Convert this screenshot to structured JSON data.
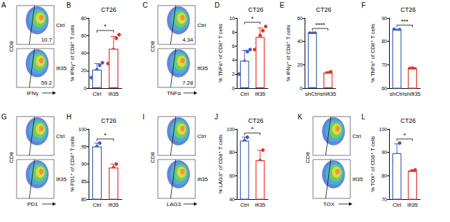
{
  "chart_data": [
    {
      "panel": "B",
      "type": "bar",
      "title": "CT26",
      "categories": [
        "Ctrl",
        "Ifi35"
      ],
      "values": [
        21,
        45
      ],
      "errors": [
        7,
        14
      ],
      "points": [
        [
          12,
          17,
          21,
          26,
          29
        ],
        [
          28,
          35,
          44,
          57,
          61
        ]
      ],
      "colors": [
        "#3f5fbf",
        "#e0342c"
      ],
      "ylabel": "% IFNγ⁺ of CD8⁺ T cells",
      "ylim": [
        0,
        80
      ],
      "yticks": [
        0,
        20,
        40,
        60,
        80
      ],
      "significance": "*"
    },
    {
      "panel": "D",
      "type": "bar",
      "title": "CT26",
      "categories": [
        "Ctrl",
        "Ifi35"
      ],
      "values": [
        3.9,
        7.3
      ],
      "errors": [
        1.5,
        1.3
      ],
      "points": [
        [
          2,
          3,
          3.8,
          5.2,
          5.5
        ],
        [
          5.5,
          6.5,
          7.5,
          8.2,
          8.8
        ]
      ],
      "colors": [
        "#3f5fbf",
        "#e0342c"
      ],
      "ylabel": "% TNFα⁺ of CD8⁺ T cells",
      "ylim": [
        0,
        10
      ],
      "yticks": [
        0,
        2,
        4,
        6,
        8,
        10
      ],
      "significance": "*"
    },
    {
      "panel": "E",
      "type": "bar",
      "title": "CT26",
      "categories": [
        "shCtrl",
        "shIfi35"
      ],
      "values": [
        47,
        13
      ],
      "errors": [
        0.5,
        1
      ],
      "points": [
        [
          47,
          47,
          47
        ],
        [
          12,
          13,
          14
        ]
      ],
      "colors": [
        "#3f5fbf",
        "#e0342c"
      ],
      "ylabel": "% IFNγ⁺ of CD8⁺ T cells",
      "ylim": [
        0,
        60
      ],
      "yticks": [
        0,
        20,
        40,
        60
      ],
      "significance": "****"
    },
    {
      "panel": "F",
      "type": "bar",
      "title": "CT26",
      "categories": [
        "shCtrl",
        "shIfi35"
      ],
      "values": [
        84.9,
        68.4
      ],
      "errors": [
        0.3,
        0.2
      ],
      "points": [
        [
          85.2,
          84.6,
          85
        ],
        [
          68.4,
          68.6,
          68.2
        ]
      ],
      "colors": [
        "#3f5fbf",
        "#e0342c"
      ],
      "ylabel": "% TNFα⁺ of CD8⁺ T cells",
      "ylim": [
        60,
        90
      ],
      "yticks": [
        60,
        70,
        80,
        90
      ],
      "significance": "***"
    },
    {
      "panel": "H",
      "type": "bar",
      "title": "CT26",
      "categories": [
        "Ctrl",
        "Ifi35"
      ],
      "values": [
        95,
        89
      ],
      "errors": [
        1,
        1
      ],
      "points": [
        [
          94,
          95,
          96
        ],
        [
          88,
          89,
          90
        ]
      ],
      "colors": [
        "#3f5fbf",
        "#e0342c"
      ],
      "ylabel": "% PD1⁺ of CD8⁺ T cells",
      "ylim": [
        80,
        100
      ],
      "yticks": [
        80,
        85,
        90,
        95,
        100
      ],
      "significance": "*"
    },
    {
      "panel": "J",
      "type": "bar",
      "title": "CT26",
      "categories": [
        "Ctrl",
        "Ifi35"
      ],
      "values": [
        90,
        73.3
      ],
      "errors": [
        3,
        8.5
      ],
      "points": [
        [
          87,
          90,
          93
        ],
        [
          65,
          73,
          82
        ]
      ],
      "colors": [
        "#3f5fbf",
        "#e0342c"
      ],
      "ylabel": "% LAG3⁺ of CD8⁺ T cells",
      "ylim": [
        40,
        100
      ],
      "yticks": [
        40,
        60,
        80,
        100
      ],
      "significance": "*"
    },
    {
      "panel": "L",
      "type": "bar",
      "title": "CT26",
      "categories": [
        "Ctrl",
        "Ifi35"
      ],
      "values": [
        89.7,
        82
      ],
      "errors": [
        4,
        0.5
      ],
      "points": [
        [
          86,
          89,
          94
        ],
        [
          81.5,
          82,
          82.5
        ]
      ],
      "colors": [
        "#3f5fbf",
        "#e0342c"
      ],
      "ylabel": "% TOX⁺ of CD8⁺ T cells",
      "ylim": [
        70,
        100
      ],
      "yticks": [
        70,
        80,
        90,
        100
      ],
      "significance": "*"
    }
  ],
  "flow_panels": [
    {
      "panel": "A",
      "y_label": "CD8",
      "x_label": "IFNγ",
      "rows": [
        {
          "name": "Ctrl",
          "gate_percent": 10.7
        },
        {
          "name": "Ifi35",
          "gate_percent": 59.2
        }
      ]
    },
    {
      "panel": "C",
      "y_label": "CD8",
      "x_label": "TNFα",
      "rows": [
        {
          "name": "Ctrl",
          "gate_percent": 4.34
        },
        {
          "name": "Ifi35",
          "gate_percent": 7.28
        }
      ]
    },
    {
      "panel": "G",
      "y_label": "CD8",
      "x_label": "PD1",
      "rows": [
        {
          "name": "Ctrl"
        },
        {
          "name": "Ifi35"
        }
      ]
    },
    {
      "panel": "I",
      "y_label": "CD8",
      "x_label": "LAG3",
      "rows": [
        {
          "name": "Ctrl"
        },
        {
          "name": "Ifi35"
        }
      ]
    },
    {
      "panel": "K",
      "y_label": "CD8",
      "x_label": "TOX",
      "rows": [
        {
          "name": "Ctrl"
        },
        {
          "name": "Ifi35"
        }
      ]
    }
  ]
}
